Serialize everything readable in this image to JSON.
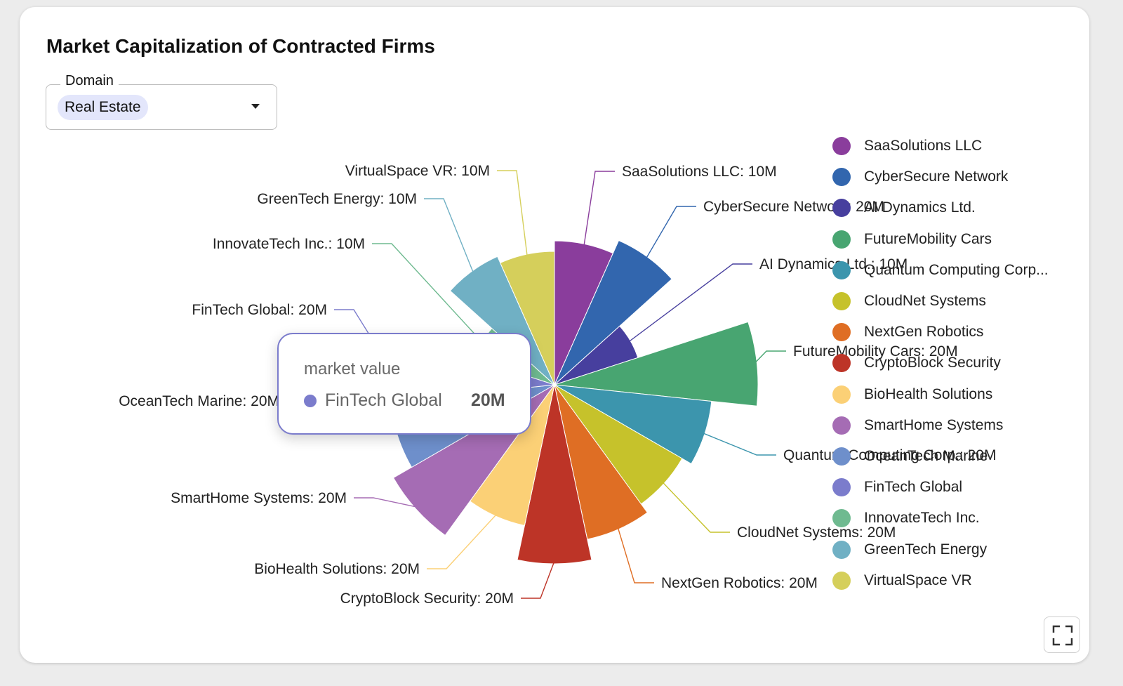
{
  "title": "Market Capitalization of Contracted Firms",
  "filter": {
    "label": "Domain",
    "selected": "Real Estate"
  },
  "tooltip": {
    "title": "market value",
    "name": "FinTech Global",
    "value": "20M"
  },
  "chart_data": {
    "type": "pie",
    "subtype": "nightingale-rose",
    "series_name": "market value",
    "unit": "M",
    "legend_position": "right",
    "slices": [
      {
        "name": "SaaSolutions LLC",
        "value": 10,
        "label": "SaaSolutions LLC: 10M",
        "color": "#8a3d9c"
      },
      {
        "name": "CyberSecure Network",
        "value": 20,
        "label": "CyberSecure Network: 20M",
        "color": "#3266ae"
      },
      {
        "name": "AI Dynamics Ltd.",
        "value": 10,
        "label": "AI Dynamics Ltd.: 10M",
        "color": "#473f9e"
      },
      {
        "name": "FutureMobility Cars",
        "value": 20,
        "label": "FutureMobility Cars: 20M",
        "color": "#48a571"
      },
      {
        "name": "Quantum Computing Corp...",
        "value": 20,
        "label": "Quantum Computing Corp.: 20M",
        "color": "#3c95ad"
      },
      {
        "name": "CloudNet Systems",
        "value": 20,
        "label": "CloudNet Systems: 20M",
        "color": "#c6c22b"
      },
      {
        "name": "NextGen Robotics",
        "value": 20,
        "label": "NextGen Robotics: 20M",
        "color": "#df6e24"
      },
      {
        "name": "CryptoBlock Security",
        "value": 20,
        "label": "CryptoBlock Security: 20M",
        "color": "#bd3427"
      },
      {
        "name": "BioHealth Solutions",
        "value": 20,
        "label": "BioHealth Solutions: 20M",
        "color": "#fbd076"
      },
      {
        "name": "SmartHome Systems",
        "value": 20,
        "label": "SmartHome Systems: 20M",
        "color": "#a56cb4"
      },
      {
        "name": "OceanTech Marine",
        "value": 20,
        "label": "OceanTech Marine: 20M",
        "color": "#6e8fcb"
      },
      {
        "name": "FinTech Global",
        "value": 20,
        "label": "FinTech Global: 20M",
        "color": "#7b7ccc"
      },
      {
        "name": "InnovateTech Inc.",
        "value": 10,
        "label": "InnovateTech Inc.: 10M",
        "color": "#6fba90"
      },
      {
        "name": "GreenTech Energy",
        "value": 10,
        "label": "GreenTech Energy: 10M",
        "color": "#70b0c4"
      },
      {
        "name": "VirtualSpace VR",
        "value": 10,
        "label": "VirtualSpace VR: 10M",
        "color": "#d5cf5b"
      }
    ]
  }
}
